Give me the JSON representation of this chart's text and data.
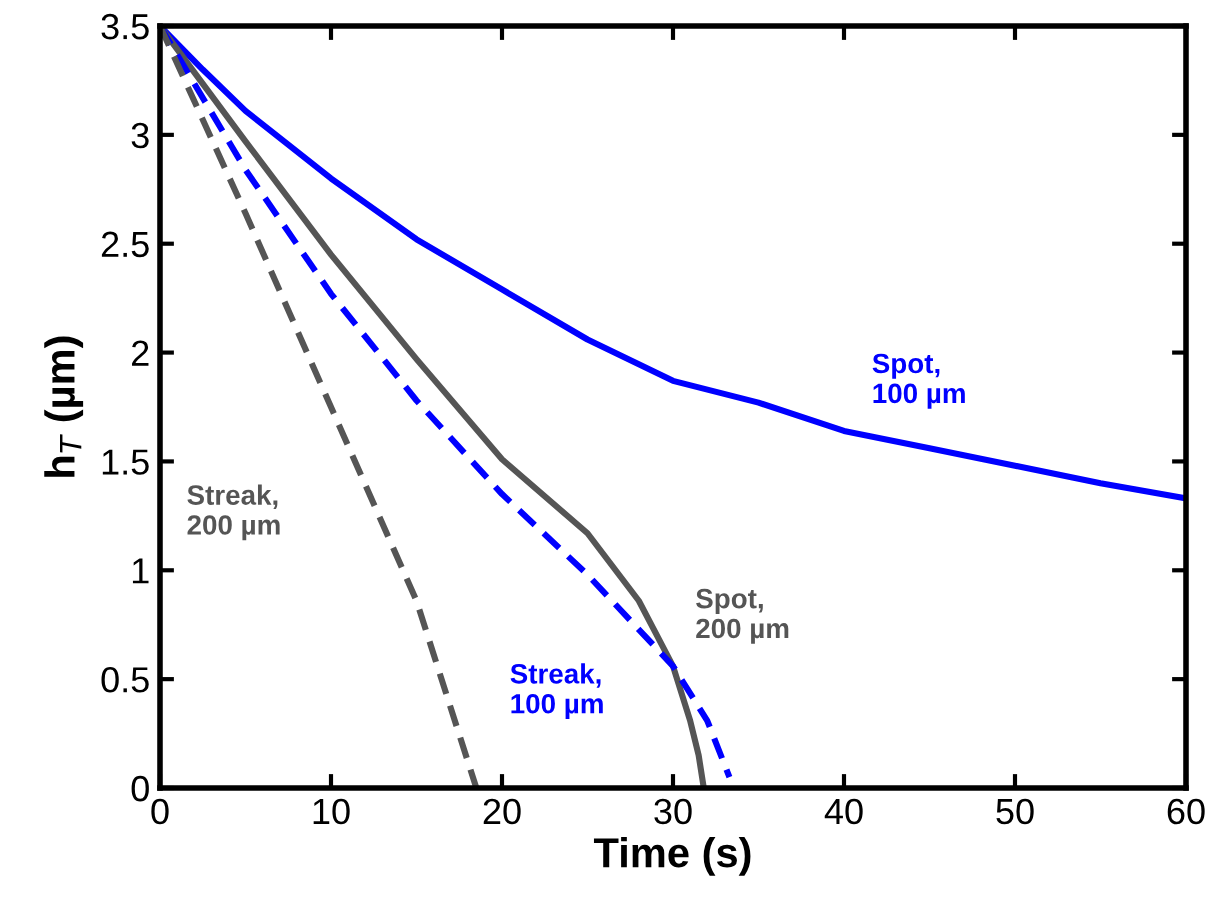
{
  "chart_data": {
    "type": "line",
    "xlabel": "Time (s)",
    "ylabel": "h$_{T}$ (µm)",
    "xlim": [
      0,
      60
    ],
    "xticks": [
      0,
      10,
      20,
      30,
      40,
      50,
      60
    ],
    "ylim": [
      0,
      3.5
    ],
    "yticks": [
      0,
      0.5,
      1,
      1.5,
      2,
      2.5,
      3,
      3.5
    ],
    "grid": false,
    "legend": false,
    "series": [
      {
        "name": "Spot,\n100 µm",
        "color": "#0000ff",
        "line_style": "solid",
        "x": [
          0,
          2.5,
          5,
          10,
          15,
          20,
          25,
          30,
          35,
          40,
          45,
          50,
          55,
          60
        ],
        "values": [
          3.5,
          3.3,
          3.11,
          2.8,
          2.52,
          2.29,
          2.06,
          1.87,
          1.77,
          1.64,
          1.56,
          1.48,
          1.4,
          1.33
        ]
      },
      {
        "name": "Spot,\n200 µm",
        "color": "#555555",
        "line_style": "solid",
        "x": [
          0,
          5,
          10,
          15,
          20,
          25,
          28,
          30,
          31,
          31.5,
          31.8
        ],
        "values": [
          3.5,
          2.97,
          2.45,
          1.97,
          1.51,
          1.17,
          0.86,
          0.56,
          0.31,
          0.15,
          0
        ]
      },
      {
        "name": "Streak,\n100 µm",
        "color": "#0000ff",
        "line_style": "dashed",
        "x": [
          0,
          5,
          10,
          15,
          20,
          25,
          30,
          32,
          33.3
        ],
        "values": [
          3.5,
          2.84,
          2.27,
          1.78,
          1.35,
          0.98,
          0.56,
          0.31,
          0.05
        ]
      },
      {
        "name": "Streak,\n200 µm",
        "color": "#555555",
        "line_style": "dashed",
        "x": [
          0,
          5,
          10,
          15,
          18.5
        ],
        "values": [
          3.5,
          2.64,
          1.75,
          0.86,
          0
        ]
      }
    ]
  }
}
